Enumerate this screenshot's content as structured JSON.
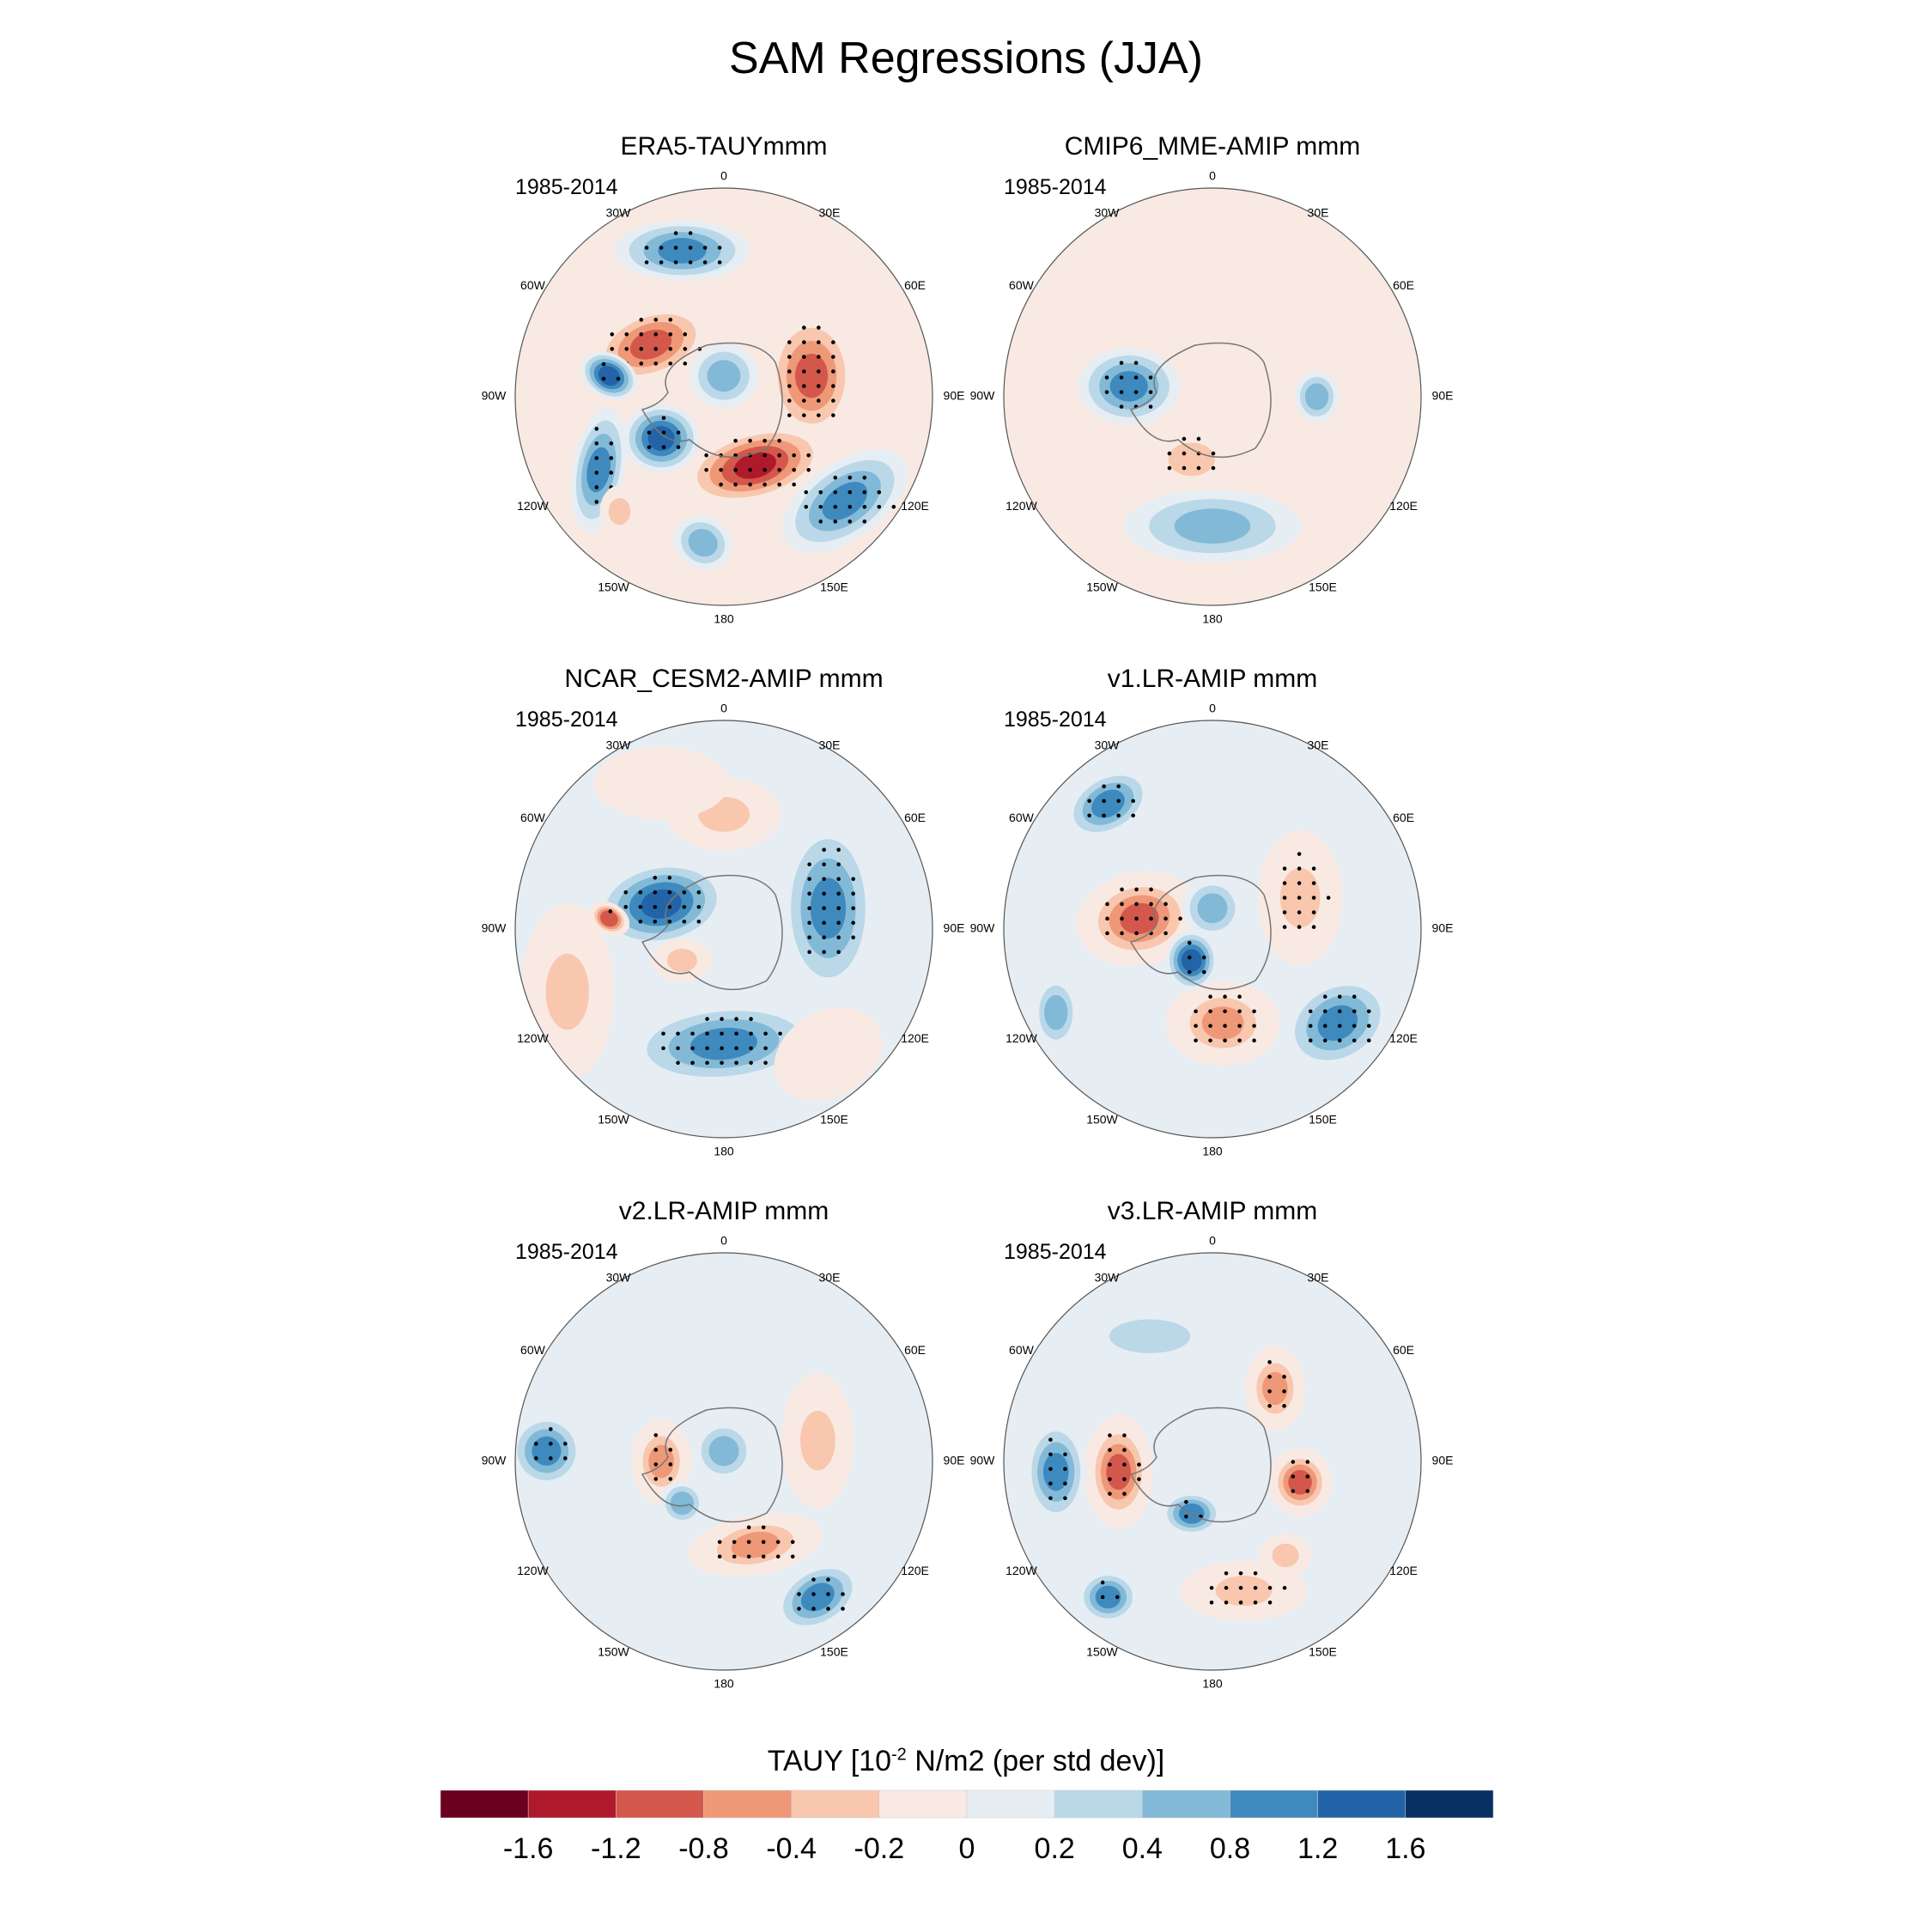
{
  "title": "SAM Regressions (JJA)",
  "chart_data": {
    "type": "heatmap",
    "projection": "south-polar-stereographic",
    "title": "SAM Regressions (JJA)",
    "variable": "TAUY",
    "colorbar": {
      "title_pre": "TAUY [10",
      "title_sup": "-2",
      "title_post": " N/m2 (per std dev)]",
      "levels": [
        "-1.6",
        "-1.2",
        "-0.8",
        "-0.4",
        "-0.2",
        "0",
        "0.2",
        "0.4",
        "0.8",
        "1.2",
        "1.6"
      ],
      "colors": [
        "#6b0020",
        "#ae1a2b",
        "#d3584b",
        "#ee9878",
        "#f8c7ae",
        "#f8e9e3",
        "#e6edf3",
        "#bad8e8",
        "#82b9d7",
        "#3e8abf",
        "#2364a8",
        "#083060"
      ]
    },
    "lon_labels": [
      "0",
      "30E",
      "60E",
      "90E",
      "120E",
      "150E",
      "180",
      "150W",
      "120W",
      "90W",
      "60W",
      "30W"
    ],
    "panels": [
      {
        "title": "ERA5-TAUYmmm",
        "period": "1985-2014"
      },
      {
        "title": "CMIP6_MME-AMIP  mmm",
        "period": "1985-2014"
      },
      {
        "title": "NCAR_CESM2-AMIP  mmm",
        "period": "1985-2014"
      },
      {
        "title": "v1.LR-AMIP  mmm",
        "period": "1985-2014"
      },
      {
        "title": "v2.LR-AMIP  mmm",
        "period": "1985-2014"
      },
      {
        "title": "v3.LR-AMIP  mmm",
        "period": "1985-2014"
      }
    ],
    "stippling": "significant regions marked with dots"
  }
}
